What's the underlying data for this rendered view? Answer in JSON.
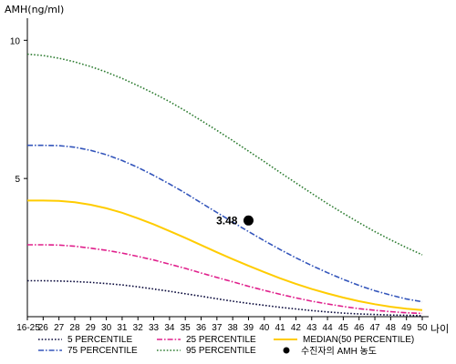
{
  "chart_data": {
    "type": "line",
    "ylabel": "AMH(ng/ml)",
    "xlabel": "나이",
    "categories": [
      "16-25",
      "26",
      "27",
      "28",
      "29",
      "30",
      "31",
      "32",
      "33",
      "34",
      "35",
      "36",
      "37",
      "38",
      "39",
      "40",
      "41",
      "42",
      "43",
      "44",
      "45",
      "46",
      "47",
      "48",
      "49",
      "50"
    ],
    "yticks": [
      5,
      10
    ],
    "ylim": [
      0,
      10.8
    ],
    "grid": false,
    "series": [
      {
        "name": "5 PERCENTILE",
        "style": "dotted",
        "color": "#0a0a3c",
        "values": [
          1.3,
          1.3,
          1.29,
          1.27,
          1.24,
          1.2,
          1.15,
          1.08,
          1.0,
          0.92,
          0.83,
          0.74,
          0.65,
          0.56,
          0.48,
          0.41,
          0.34,
          0.28,
          0.22,
          0.17,
          0.13,
          0.1,
          0.08,
          0.06,
          0.05,
          0.04
        ]
      },
      {
        "name": "25 PERCENTILE",
        "style": "dashdot",
        "color": "#e0208c",
        "values": [
          2.6,
          2.6,
          2.59,
          2.55,
          2.48,
          2.4,
          2.3,
          2.18,
          2.05,
          1.9,
          1.75,
          1.58,
          1.42,
          1.26,
          1.1,
          0.95,
          0.81,
          0.68,
          0.56,
          0.46,
          0.37,
          0.29,
          0.23,
          0.18,
          0.14,
          0.12
        ]
      },
      {
        "name": "MEDIAN(50 PERCENTILE)",
        "style": "solid",
        "color": "#ffcc00",
        "values": [
          4.2,
          4.2,
          4.19,
          4.14,
          4.05,
          3.92,
          3.76,
          3.56,
          3.34,
          3.1,
          2.85,
          2.59,
          2.33,
          2.08,
          1.84,
          1.61,
          1.39,
          1.19,
          1.0,
          0.84,
          0.69,
          0.56,
          0.45,
          0.36,
          0.29,
          0.24
        ]
      },
      {
        "name": "75 PERCENTILE",
        "style": "dashdot",
        "color": "#3355bb",
        "values": [
          6.2,
          6.2,
          6.19,
          6.13,
          6.02,
          5.86,
          5.65,
          5.4,
          5.11,
          4.8,
          4.47,
          4.12,
          3.77,
          3.42,
          3.08,
          2.75,
          2.43,
          2.13,
          1.85,
          1.59,
          1.35,
          1.13,
          0.94,
          0.78,
          0.64,
          0.54
        ]
      },
      {
        "name": "95 PERCENTILE",
        "style": "dotted",
        "color": "#2e7d32",
        "values": [
          9.5,
          9.45,
          9.35,
          9.22,
          9.05,
          8.85,
          8.62,
          8.36,
          8.08,
          7.78,
          7.45,
          7.1,
          6.74,
          6.37,
          5.99,
          5.61,
          5.22,
          4.84,
          4.46,
          4.09,
          3.74,
          3.4,
          3.08,
          2.78,
          2.5,
          2.24
        ]
      }
    ],
    "marker": {
      "name": "수진자의 AMH 농도",
      "category": "39",
      "value": 3.48,
      "label": "3.48",
      "color": "#000000"
    }
  }
}
